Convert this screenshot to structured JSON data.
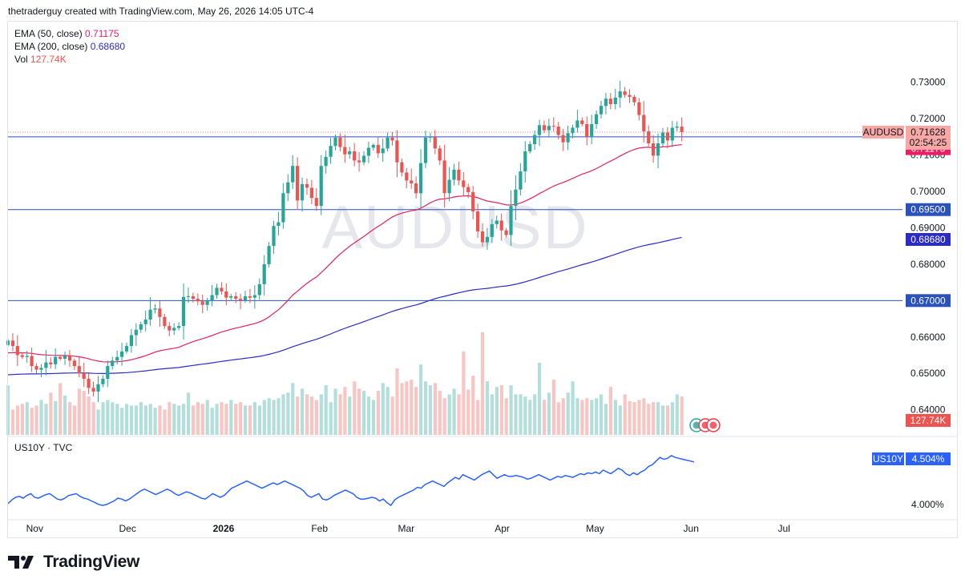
{
  "header": {
    "credit": "thetraderguy created with TradingView.com, May 26, 2026 14:05 UTC-4"
  },
  "footer": {
    "brand": "TradingView"
  },
  "colors": {
    "up": "#26a69a",
    "down": "#ef5350",
    "ema50": "#e91e63",
    "ema200": "#2b2bc9",
    "hline": "#2a52be",
    "vol_up": "#b2dfdb",
    "vol_down": "#f8c5c3",
    "us10y": "#2962ff"
  },
  "chart_data": [
    {
      "type": "candlestick",
      "symbol_watermark": "AUDUSD",
      "indicators": [
        {
          "name": "EMA (50, close)",
          "value": "0.71175",
          "color": "#e91e63"
        },
        {
          "name": "EMA (200, close)",
          "value": "0.68680",
          "color": "#2b2bc9"
        },
        {
          "name": "Vol",
          "value": "127.74K",
          "color": "#ef5350"
        }
      ],
      "x_ticks": [
        "Nov",
        "Dec",
        "2026",
        "Feb",
        "Mar",
        "Apr",
        "May",
        "Jun",
        "Jul"
      ],
      "y_ticks": [
        "0.73000",
        "0.72000",
        "0.71000",
        "0.70000",
        "0.69000",
        "0.68000",
        "0.66000",
        "0.65000",
        "0.64000"
      ],
      "ylim": [
        0.6375,
        0.7405
      ],
      "x_range": [
        "2025-10-27",
        "2026-07-31"
      ],
      "price_label": {
        "symbol": "AUDUSD",
        "price": "0.71628",
        "countdown": "02:54:25"
      },
      "horizontal_lines": [
        {
          "value": 0.715,
          "label": "0.71500"
        },
        {
          "value": 0.695,
          "label": "0.69500"
        },
        {
          "value": 0.67,
          "label": "0.67000"
        }
      ],
      "ema_labels": [
        {
          "label": "0.71175",
          "value": 0.71175
        },
        {
          "label": "0.68680",
          "value": 0.6868
        }
      ],
      "volume_label": "127.74K",
      "closes": [
        0.659,
        0.6575,
        0.655,
        0.6545,
        0.6548,
        0.652,
        0.651,
        0.6515,
        0.653,
        0.6525,
        0.6545,
        0.654,
        0.6548,
        0.6535,
        0.652,
        0.65,
        0.6485,
        0.646,
        0.645,
        0.647,
        0.6485,
        0.652,
        0.6535,
        0.6545,
        0.656,
        0.6575,
        0.6605,
        0.662,
        0.6635,
        0.6648,
        0.6675,
        0.6678,
        0.6655,
        0.663,
        0.6618,
        0.6625,
        0.663,
        0.671,
        0.6712,
        0.6705,
        0.6698,
        0.6688,
        0.67,
        0.6715,
        0.6735,
        0.6725,
        0.6708,
        0.6712,
        0.6705,
        0.67,
        0.6712,
        0.6708,
        0.6715,
        0.6745,
        0.68,
        0.685,
        0.6905,
        0.6915,
        0.6995,
        0.7025,
        0.707,
        0.6975,
        0.702,
        0.701,
        0.6982,
        0.696,
        0.707,
        0.7095,
        0.7125,
        0.7148,
        0.7122,
        0.7102,
        0.711,
        0.7085,
        0.708,
        0.7098,
        0.712,
        0.7128,
        0.7105,
        0.7118,
        0.7148,
        0.714,
        0.708,
        0.7052,
        0.703,
        0.7022,
        0.6995,
        0.7078,
        0.7148,
        0.715,
        0.7118,
        0.7085,
        0.6995,
        0.7032,
        0.706,
        0.703,
        0.7012,
        0.6998,
        0.6945,
        0.689,
        0.686,
        0.6875,
        0.691,
        0.692,
        0.6893,
        0.688,
        0.696,
        0.7005,
        0.7055,
        0.711,
        0.713,
        0.7155,
        0.7182,
        0.7168,
        0.718,
        0.7178,
        0.7155,
        0.7135,
        0.716,
        0.7175,
        0.7195,
        0.7185,
        0.715,
        0.7185,
        0.7212,
        0.7235,
        0.7255,
        0.724,
        0.7258,
        0.7275,
        0.7265,
        0.726,
        0.7245,
        0.721,
        0.7165,
        0.7132,
        0.7098,
        0.7132,
        0.7162,
        0.714,
        0.7175,
        0.7178,
        0.7163
      ],
      "volumes": [
        88,
        45,
        52,
        55,
        58,
        48,
        52,
        62,
        55,
        75,
        60,
        92,
        70,
        58,
        52,
        82,
        78,
        68,
        58,
        45,
        58,
        62,
        58,
        55,
        48,
        55,
        52,
        52,
        58,
        52,
        55,
        48,
        52,
        45,
        58,
        55,
        52,
        55,
        75,
        52,
        58,
        55,
        62,
        48,
        55,
        58,
        55,
        62,
        55,
        58,
        52,
        52,
        58,
        52,
        62,
        65,
        62,
        65,
        72,
        75,
        92,
        68,
        82,
        72,
        68,
        62,
        72,
        88,
        58,
        82,
        72,
        85,
        68,
        95,
        82,
        78,
        68,
        62,
        78,
        92,
        85,
        68,
        118,
        92,
        95,
        98,
        85,
        125,
        95,
        88,
        92,
        78,
        65,
        72,
        82,
        72,
        148,
        80,
        105,
        62,
        182,
        95,
        72,
        85,
        88,
        65,
        88,
        72,
        72,
        68,
        62,
        72,
        128,
        62,
        75,
        98,
        58,
        65,
        75,
        95,
        65,
        62,
        65,
        62,
        65,
        72,
        55,
        85,
        62,
        52,
        72,
        60,
        58,
        62,
        65,
        55,
        58,
        58,
        52,
        52,
        58,
        72,
        68,
        52,
        18
      ]
    },
    {
      "type": "line",
      "name": "US10Y · TVC",
      "last_label": {
        "symbol": "US10Y",
        "value": "4.504%"
      },
      "y_ticks": [
        "4.000%"
      ],
      "ylim": [
        3.93,
        4.56
      ],
      "values": [
        4.01,
        4.05,
        4.08,
        4.09,
        4.07,
        4.1,
        4.12,
        4.08,
        4.07,
        4.09,
        4.11,
        4.12,
        4.09,
        4.06,
        4.05,
        4.07,
        4.1,
        4.11,
        4.12,
        4.09,
        4.07,
        4.06,
        4.04,
        4.02,
        4.0,
        3.99,
        4.0,
        4.02,
        4.04,
        4.07,
        4.06,
        4.04,
        4.06,
        4.09,
        4.12,
        4.15,
        4.17,
        4.15,
        4.13,
        4.11,
        4.13,
        4.15,
        4.17,
        4.15,
        4.12,
        4.1,
        4.12,
        4.14,
        4.13,
        4.11,
        4.09,
        4.07,
        4.06,
        4.09,
        4.12,
        4.1,
        4.08,
        4.1,
        4.14,
        4.18,
        4.2,
        4.22,
        4.24,
        4.26,
        4.24,
        4.22,
        4.2,
        4.18,
        4.2,
        4.22,
        4.24,
        4.22,
        4.24,
        4.26,
        4.24,
        4.22,
        4.2,
        4.18,
        4.15,
        4.1,
        4.08,
        4.1,
        4.12,
        4.06,
        4.05,
        4.07,
        4.1,
        4.12,
        4.14,
        4.16,
        4.14,
        4.12,
        4.08,
        4.06,
        4.06,
        4.07,
        4.08,
        4.07,
        4.04,
        4.06,
        4.02,
        3.99,
        4.05,
        4.08,
        4.1,
        4.12,
        4.14,
        4.16,
        4.19,
        4.18,
        4.22,
        4.24,
        4.26,
        4.24,
        4.22,
        4.2,
        4.24,
        4.27,
        4.3,
        4.28,
        4.33,
        4.31,
        4.29,
        4.27,
        4.3,
        4.33,
        4.35,
        4.37,
        4.33,
        4.29,
        4.31,
        4.33,
        4.31,
        4.31,
        4.32,
        4.31,
        4.3,
        4.28,
        4.29,
        4.31,
        4.33,
        4.31,
        4.29,
        4.27,
        4.29,
        4.31,
        4.3,
        4.32,
        4.31,
        4.3,
        4.32,
        4.34,
        4.33,
        4.35,
        4.34,
        4.36,
        4.34,
        4.38,
        4.36,
        4.34,
        4.37,
        4.4,
        4.38,
        4.34,
        4.32,
        4.35,
        4.33,
        4.36,
        4.38,
        4.42,
        4.44,
        4.48,
        4.52,
        4.5,
        4.51,
        4.54,
        4.52,
        4.51,
        4.5,
        4.49,
        4.48,
        4.47
      ]
    }
  ]
}
